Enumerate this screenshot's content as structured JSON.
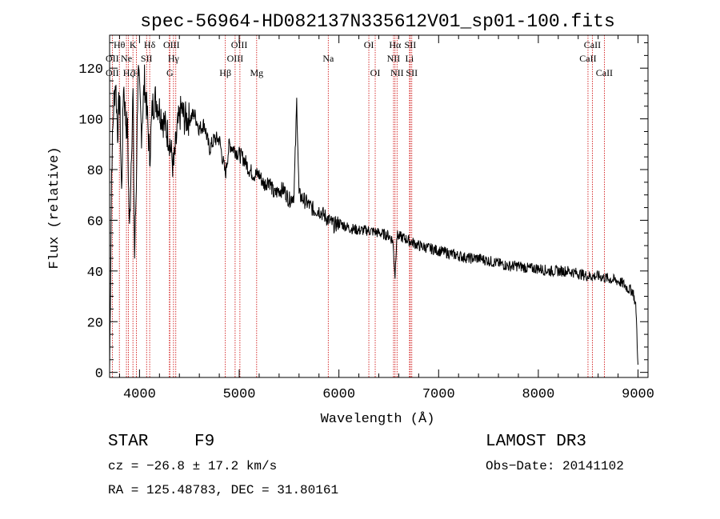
{
  "chart_data": {
    "type": "line",
    "title": "spec-56964-HD082137N335612V01_sp01-100.fits",
    "xlabel": "Wavelength (Å)",
    "ylabel": "Flux (relative)",
    "xlim": [
      3700,
      9100
    ],
    "ylim": [
      -2,
      133
    ],
    "xticks": [
      4000,
      5000,
      6000,
      7000,
      8000,
      9000
    ],
    "yticks": [
      0,
      20,
      40,
      60,
      80,
      100,
      120
    ],
    "series_color": "#000000",
    "line_color": "#cc0000",
    "series": [
      {
        "name": "flux",
        "x": [
          3700,
          3720,
          3740,
          3760,
          3780,
          3800,
          3820,
          3840,
          3860,
          3880,
          3900,
          3920,
          3935,
          3950,
          3968,
          3985,
          4000,
          4020,
          4050,
          4080,
          4102,
          4130,
          4160,
          4200,
          4250,
          4300,
          4340,
          4380,
          4420,
          4450,
          4500,
          4550,
          4600,
          4650,
          4700,
          4750,
          4800,
          4861,
          4900,
          4950,
          5000,
          5050,
          5100,
          5150,
          5200,
          5250,
          5300,
          5350,
          5400,
          5450,
          5500,
          5550,
          5577,
          5600,
          5650,
          5700,
          5750,
          5800,
          5850,
          5900,
          5950,
          6000,
          6100,
          6200,
          6300,
          6400,
          6500,
          6540,
          6563,
          6580,
          6650,
          6700,
          6800,
          6900,
          7000,
          7100,
          7200,
          7300,
          7400,
          7500,
          7600,
          7700,
          7800,
          7900,
          8000,
          8100,
          8200,
          8300,
          8400,
          8500,
          8600,
          8700,
          8800,
          8850,
          8900,
          8950,
          8980,
          9000
        ],
        "y": [
          0,
          80,
          105,
          115,
          95,
          110,
          70,
          115,
          100,
          95,
          55,
          90,
          110,
          45,
          75,
          120,
          110,
          95,
          115,
          100,
          85,
          105,
          108,
          104,
          98,
          92,
          80,
          96,
          104,
          100,
          100,
          102,
          96,
          98,
          88,
          92,
          92,
          78,
          90,
          88,
          86,
          84,
          80,
          78,
          78,
          74,
          76,
          70,
          72,
          72,
          68,
          70,
          107,
          70,
          68,
          66,
          64,
          64,
          62,
          60,
          58,
          59,
          57,
          56,
          56,
          55,
          54,
          52,
          38,
          54,
          53,
          52,
          50,
          49,
          48,
          47,
          46,
          45,
          45,
          44,
          43,
          42,
          42,
          41,
          41,
          40,
          40,
          40,
          39,
          38,
          38,
          37,
          36,
          35,
          33,
          32,
          25,
          3
        ]
      }
    ],
    "lines": [
      {
        "label": "O II",
        "x": 3727
      },
      {
        "label": "Hθ",
        "x": 3798
      },
      {
        "label": "Ne III",
        "x": 3869
      },
      {
        "label": "Hζ",
        "x": 3889
      },
      {
        "label": "K",
        "x": 3934
      },
      {
        "label": "H",
        "x": 3968
      },
      {
        "label": "S II",
        "x": 4071
      },
      {
        "label": "Hδ",
        "x": 4102
      },
      {
        "label": "O III",
        "x": 4300
      },
      {
        "label": "G",
        "x": 4304
      },
      {
        "label": "Hγ",
        "x": 4341
      },
      {
        "label": "O III",
        "x": 4364
      },
      {
        "label": "Hβ",
        "x": 4861
      },
      {
        "label": "O III",
        "x": 4959
      },
      {
        "label": "O III",
        "x": 5007
      },
      {
        "label": "Mg",
        "x": 5175
      },
      {
        "label": "Na",
        "x": 5893
      },
      {
        "label": "O I",
        "x": 6300
      },
      {
        "label": "O I",
        "x": 6364
      },
      {
        "label": "N II",
        "x": 6548
      },
      {
        "label": "Hα",
        "x": 6563
      },
      {
        "label": "N II",
        "x": 6583
      },
      {
        "label": "Li",
        "x": 6708
      },
      {
        "label": "S II",
        "x": 6716
      },
      {
        "label": "S II",
        "x": 6731
      },
      {
        "label": "Ca II",
        "x": 8498
      },
      {
        "label": "Ca II",
        "x": 8542
      },
      {
        "label": "Ca II",
        "x": 8662
      }
    ],
    "top_labels": [
      {
        "text": "Hθ",
        "x": 3798
      },
      {
        "text": "K",
        "x": 3934
      },
      {
        "text": "Hδ",
        "x": 4102
      },
      {
        "text": "OIII",
        "x": 4320
      },
      {
        "text": "OIII",
        "x": 5000
      },
      {
        "text": "OI",
        "x": 6300
      },
      {
        "text": "Hα",
        "x": 6563
      },
      {
        "text": "SII",
        "x": 6716
      },
      {
        "text": "CaII",
        "x": 8542
      }
    ],
    "mid_labels": [
      {
        "text": "OII",
        "x": 3727
      },
      {
        "text": "Ne",
        "x": 3869
      },
      {
        "text": "SII",
        "x": 4071
      },
      {
        "text": "Hγ",
        "x": 4341
      },
      {
        "text": "OIII",
        "x": 4959
      },
      {
        "text": "Na",
        "x": 5893
      },
      {
        "text": "NII",
        "x": 6548
      },
      {
        "text": "Li",
        "x": 6708
      },
      {
        "text": "CaII",
        "x": 8498
      }
    ],
    "low_labels": [
      {
        "text": "OII",
        "x": 3727
      },
      {
        "text": "Hζ",
        "x": 3889
      },
      {
        "text": "H",
        "x": 3968
      },
      {
        "text": "G",
        "x": 4304
      },
      {
        "text": "Hβ",
        "x": 4861
      },
      {
        "text": "Mg",
        "x": 5175
      },
      {
        "text": "OI",
        "x": 6364
      },
      {
        "text": "NII",
        "x": 6583
      },
      {
        "text": "SII",
        "x": 6731
      },
      {
        "text": "CaII",
        "x": 8662
      }
    ]
  },
  "info": {
    "object_type": "STAR",
    "subclass": "F9",
    "survey": "LAMOST DR3",
    "cz": "cz = −26.8 ± 17.2 km/s",
    "obs_date": "Obs−Date: 20141102",
    "coords": "RA = 125.48783, DEC =  31.80161"
  }
}
